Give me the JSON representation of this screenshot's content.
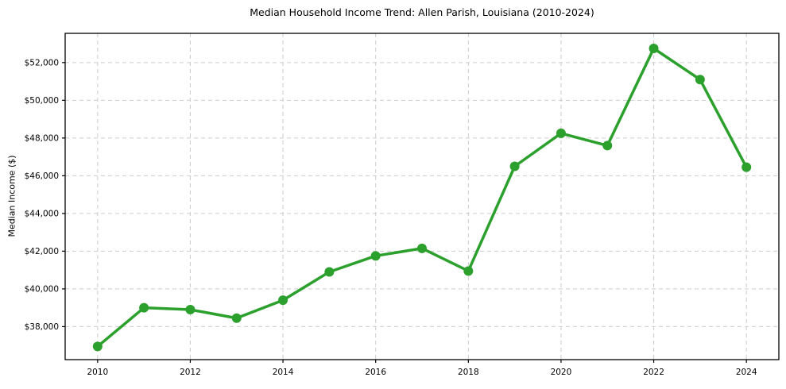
{
  "figure": {
    "background": "#ffffff"
  },
  "chart_data": {
    "type": "line",
    "title": "Median Household Income Trend: Allen Parish, Louisiana (2010-2024)",
    "xlabel": "",
    "ylabel": "Median Income ($)",
    "x": [
      2010,
      2011,
      2012,
      2013,
      2014,
      2015,
      2016,
      2017,
      2018,
      2019,
      2020,
      2021,
      2022,
      2023,
      2024
    ],
    "series": [
      {
        "name": "Median Household Income",
        "values": [
          36950,
          39000,
          38900,
          38450,
          39400,
          40900,
          41750,
          42150,
          40950,
          46500,
          48250,
          47600,
          52750,
          51100,
          46450
        ]
      }
    ],
    "xlim": [
      2009.3,
      2024.7
    ],
    "ylim": [
      36250,
      53550
    ],
    "xticks": [
      2010,
      2012,
      2014,
      2016,
      2018,
      2020,
      2022,
      2024
    ],
    "xtick_labels": [
      "2010",
      "2012",
      "2014",
      "2016",
      "2018",
      "2020",
      "2022",
      "2024"
    ],
    "yticks": [
      38000,
      40000,
      42000,
      44000,
      46000,
      48000,
      50000,
      52000
    ],
    "ytick_labels": [
      "$38,000",
      "$40,000",
      "$42,000",
      "$44,000",
      "$46,000",
      "$48,000",
      "$50,000",
      "$52,000"
    ],
    "line_color": "#2ca02c",
    "marker": "circle",
    "marker_radius": 6,
    "line_width": 3.5,
    "grid": true,
    "grid_style": "dashed",
    "grid_color": "#cccccc",
    "axis_color": "#000000",
    "text_color": "#000000",
    "legend_position": "none",
    "plot_background": "#ffffff"
  }
}
